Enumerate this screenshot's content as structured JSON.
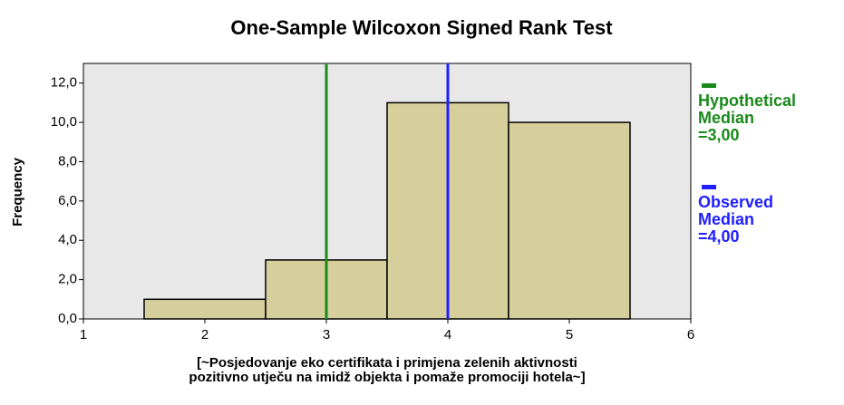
{
  "chart_data": {
    "type": "histogram",
    "title": "One-Sample Wilcoxon Signed Rank Test",
    "x_label": "[~Posjedovanje eko certifikata i primjena zelenih aktivnosti pozitivno utječu na imidž objekta i pomaže promociji hotela~]",
    "y_label": "Frequency",
    "bins": [
      1.5,
      2.5,
      3.5,
      4.5,
      5.5
    ],
    "counts": [
      1,
      3,
      11,
      10
    ],
    "color": "#d6cf9c",
    "xlim": [
      1,
      6
    ],
    "xticks": [
      1,
      2,
      3,
      4,
      5,
      6
    ],
    "ylim": [
      0,
      13
    ],
    "yticks": [
      {
        "value": 0,
        "label": "0,0"
      },
      {
        "value": 2,
        "label": "2,0"
      },
      {
        "value": 4,
        "label": "4,0"
      },
      {
        "value": 6,
        "label": "6,0"
      },
      {
        "value": 8,
        "label": "8,0"
      },
      {
        "value": 10,
        "label": "10,0"
      },
      {
        "value": 12,
        "label": "12,0"
      }
    ],
    "lines": [
      {
        "name": "Hypothetical Median",
        "value": 3,
        "label": "=3,00",
        "color": "#1a8a1a"
      },
      {
        "name": "Observed Median",
        "value": 4,
        "label": "=4,00",
        "color": "#2020ff"
      }
    ]
  }
}
